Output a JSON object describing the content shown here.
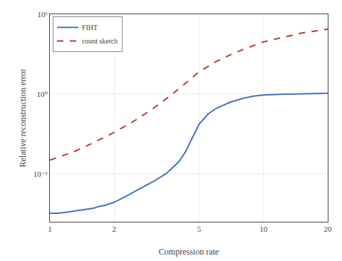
{
  "chart_data": {
    "type": "line",
    "xlabel": "Compression rate",
    "ylabel": "Relative reconstruction error",
    "log": true,
    "grid": true,
    "legend": "upper left",
    "xlim": [
      1.0,
      20.0
    ],
    "ylim": [
      0.025,
      10.0
    ],
    "xticks": [
      1,
      2,
      5,
      10,
      20
    ],
    "yticks": [
      {
        "value": 0.1,
        "label": "10⁻¹"
      },
      {
        "value": 1.0,
        "label": "10⁰"
      },
      {
        "value": 10.0,
        "label": "10¹"
      }
    ],
    "series": [
      {
        "name": "FIHT",
        "color": "#4472c4",
        "line_style": "solid",
        "x": [
          1.0,
          1.05,
          1.1,
          1.2,
          1.3,
          1.4,
          1.5,
          1.6,
          1.7,
          1.8,
          1.9,
          2.0,
          2.2,
          2.5,
          3.0,
          3.5,
          4.0,
          4.3,
          4.6,
          5.0,
          5.5,
          6.0,
          7.0,
          8.0,
          9.0,
          10.0,
          12.0,
          15.0,
          20.0
        ],
        "values": [
          0.032,
          0.032,
          0.032,
          0.033,
          0.034,
          0.035,
          0.036,
          0.037,
          0.039,
          0.04,
          0.042,
          0.044,
          0.05,
          0.06,
          0.078,
          0.1,
          0.14,
          0.185,
          0.27,
          0.42,
          0.56,
          0.66,
          0.79,
          0.88,
          0.94,
          0.97,
          0.99,
          1.0,
          1.02
        ]
      },
      {
        "name": "count sketch",
        "color": "#c0392b",
        "line_style": "dashed",
        "x": [
          1.0,
          1.3,
          1.6,
          2.0,
          2.5,
          3.0,
          3.5,
          4.0,
          5.0,
          6.0,
          7.0,
          8.0,
          10.0,
          15.0,
          20.0
        ],
        "values": [
          0.148,
          0.19,
          0.245,
          0.33,
          0.465,
          0.64,
          0.87,
          1.15,
          1.9,
          2.55,
          3.1,
          3.6,
          4.5,
          5.8,
          6.5
        ]
      }
    ]
  }
}
